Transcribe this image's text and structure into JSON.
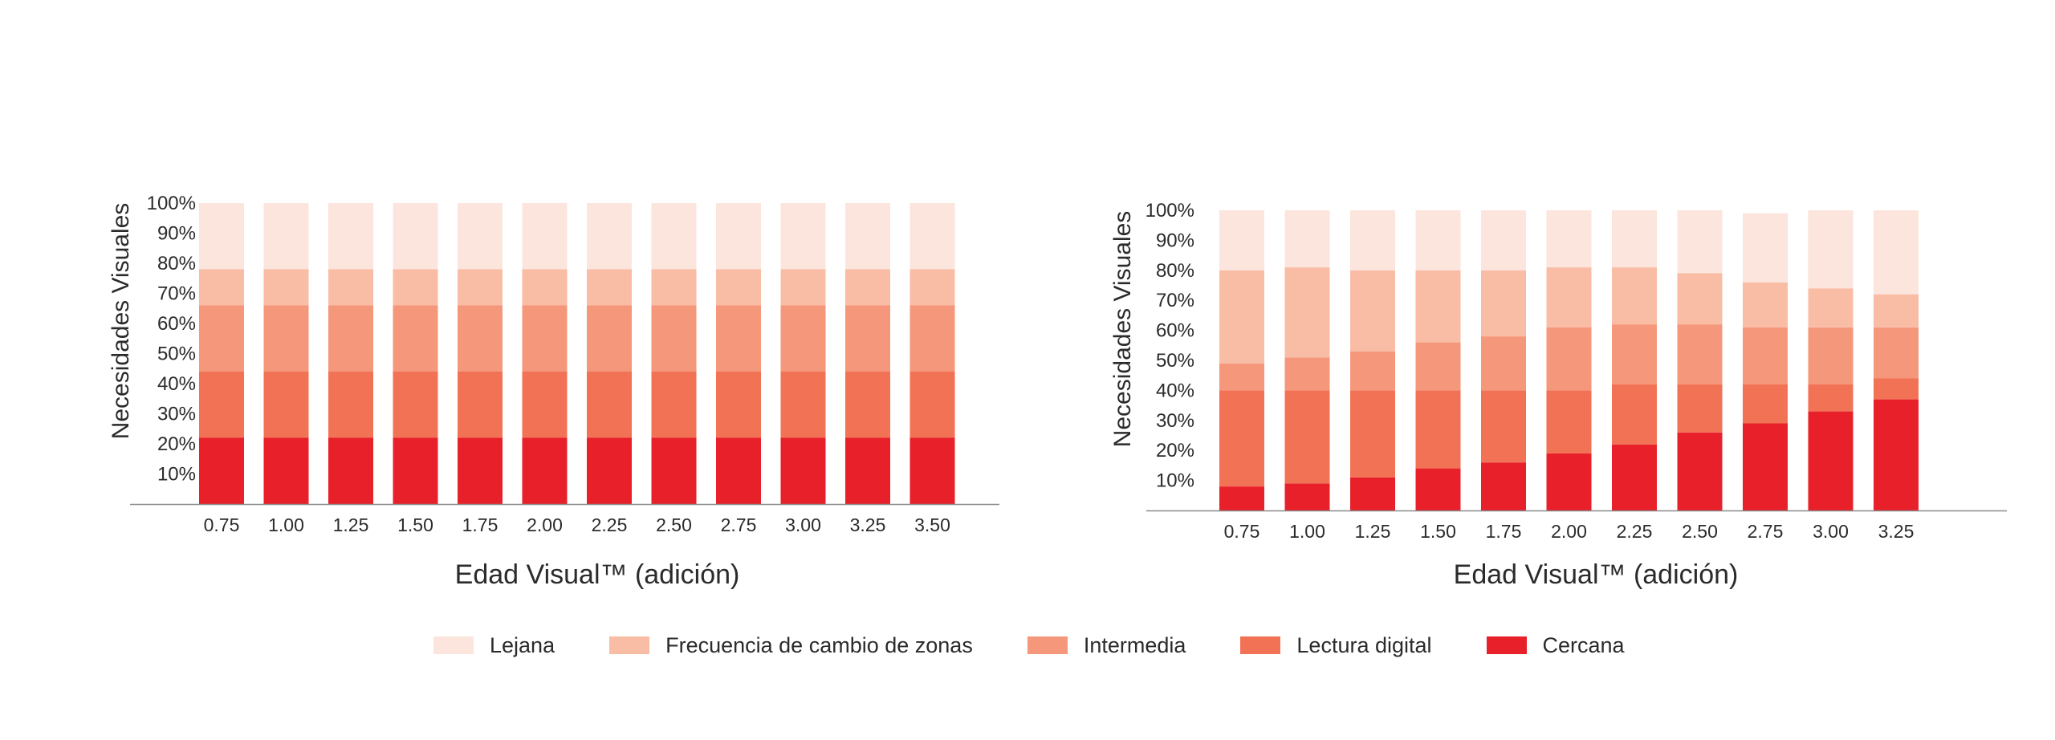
{
  "colors": {
    "Lejana": "#fce5dc",
    "Frecuencia de cambio de zonas": "#f9bca5",
    "Intermedia": "#f5977a",
    "Lectura digital": "#f27256",
    "Cercana": "#e8202a",
    "axis": "#8a8a8a"
  },
  "legend": [
    {
      "label": "Lejana",
      "color": "#fce5dc"
    },
    {
      "label": "Frecuencia de cambio de zonas",
      "color": "#f9bca5"
    },
    {
      "label": "Intermedia",
      "color": "#f5977a"
    },
    {
      "label": "Lectura digital",
      "color": "#f27256"
    },
    {
      "label": "Cercana",
      "color": "#e8202a"
    }
  ],
  "chart_data": [
    {
      "type": "bar",
      "stacked": true,
      "xlabel": "Edad Visual™ (adición)",
      "ylabel": "Necesidades Visuales",
      "ylim": [
        0,
        100
      ],
      "yticks": [
        "10%",
        "20%",
        "30%",
        "40%",
        "50%",
        "60%",
        "70%",
        "80%",
        "90%",
        "100%"
      ],
      "categories": [
        "0.75",
        "1.00",
        "1.25",
        "1.50",
        "1.75",
        "2.00",
        "2.25",
        "2.50",
        "2.75",
        "3.00",
        "3.25",
        "3.50"
      ],
      "grid": false,
      "series": [
        {
          "name": "Cercana",
          "values": [
            22,
            22,
            22,
            22,
            22,
            22,
            22,
            22,
            22,
            22,
            22,
            22
          ]
        },
        {
          "name": "Lectura digital",
          "values": [
            22,
            22,
            22,
            22,
            22,
            22,
            22,
            22,
            22,
            22,
            22,
            22
          ]
        },
        {
          "name": "Intermedia",
          "values": [
            22,
            22,
            22,
            22,
            22,
            22,
            22,
            22,
            22,
            22,
            22,
            22
          ]
        },
        {
          "name": "Frecuencia de cambio de zonas",
          "values": [
            12,
            12,
            12,
            12,
            12,
            12,
            12,
            12,
            12,
            12,
            12,
            12
          ]
        },
        {
          "name": "Lejana",
          "values": [
            22,
            22,
            22,
            22,
            22,
            22,
            22,
            22,
            22,
            22,
            22,
            22
          ]
        }
      ]
    },
    {
      "type": "bar",
      "stacked": true,
      "xlabel": "Edad Visual™ (adición)",
      "ylabel": "Necesidades Visuales",
      "ylim": [
        0,
        100
      ],
      "yticks": [
        "10%",
        "20%",
        "30%",
        "40%",
        "50%",
        "60%",
        "70%",
        "80%",
        "90%",
        "100%"
      ],
      "categories": [
        "0.75",
        "1.00",
        "1.25",
        "1.50",
        "1.75",
        "2.00",
        "2.25",
        "2.50",
        "2.75",
        "3.00",
        "3.25"
      ],
      "grid": false,
      "series": [
        {
          "name": "Cercana",
          "values": [
            8,
            9,
            11,
            14,
            16,
            19,
            22,
            26,
            29,
            33,
            37
          ]
        },
        {
          "name": "Lectura digital",
          "values": [
            32,
            31,
            29,
            26,
            24,
            21,
            20,
            16,
            13,
            9,
            7
          ]
        },
        {
          "name": "Intermedia",
          "values": [
            9,
            11,
            13,
            16,
            18,
            21,
            20,
            20,
            19,
            19,
            17
          ]
        },
        {
          "name": "Frecuencia de cambio de zonas",
          "values": [
            31,
            30,
            27,
            24,
            22,
            20,
            19,
            17,
            15,
            13,
            11
          ]
        },
        {
          "name": "Lejana",
          "values": [
            20,
            19,
            20,
            20,
            20,
            19,
            19,
            21,
            23,
            26,
            28
          ]
        }
      ]
    }
  ]
}
